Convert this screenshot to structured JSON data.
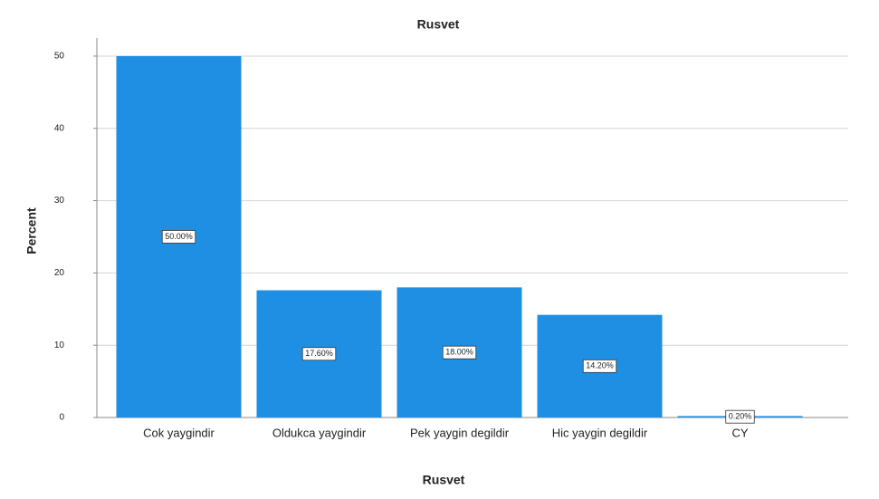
{
  "chart_data": {
    "type": "bar",
    "title": "Rusvet",
    "x_label": "Rusvet",
    "y_label": "Percent",
    "categories": [
      "Cok yaygindir",
      "Oldukca yaygindir",
      "Pek yaygin degildir",
      "Hic yaygin degildir",
      "CY"
    ],
    "values": [
      50.0,
      17.6,
      18.0,
      14.2,
      0.2
    ],
    "value_labels": [
      "50.00%",
      "17.60%",
      "18.00%",
      "14.20%",
      "0.20%"
    ],
    "color": "#1e8fe3",
    "ylim": [
      0,
      52.5
    ],
    "yticks": [
      0,
      10,
      20,
      30,
      40,
      50
    ],
    "grid": true
  }
}
